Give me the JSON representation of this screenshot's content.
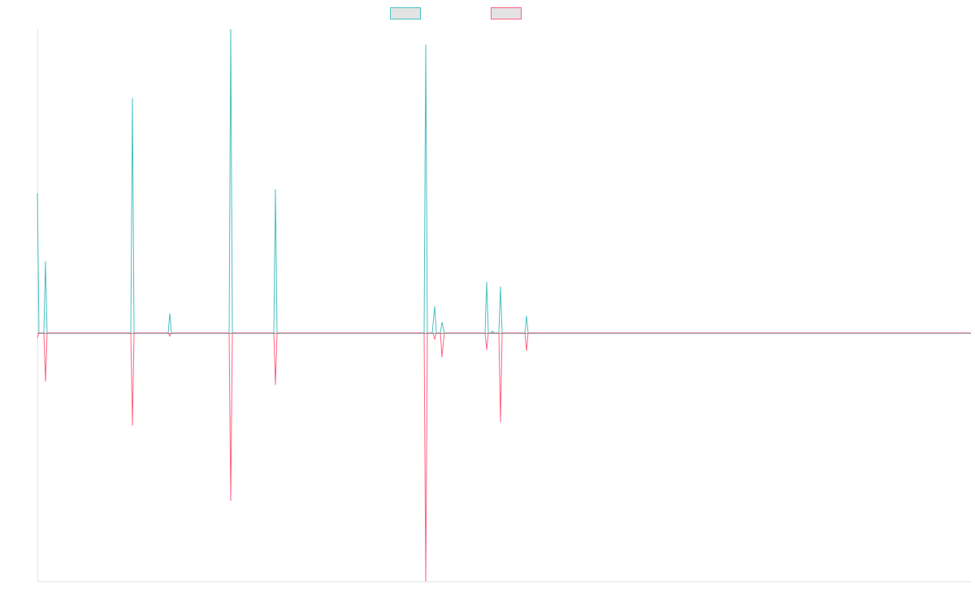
{
  "chart_data": {
    "type": "line",
    "title": "",
    "xlabel": "",
    "ylabel": "",
    "xlim": [
      0,
      1149
    ],
    "ylim": [
      -306,
      374
    ],
    "grid": false,
    "legend_placement": "top-center",
    "series": [
      {
        "name": "",
        "color": "#4bc0c0",
        "points": [
          [
            0,
            172
          ],
          [
            2,
            0
          ],
          [
            8,
            0
          ],
          [
            10,
            88
          ],
          [
            12,
            0
          ],
          [
            115,
            0
          ],
          [
            117,
            289
          ],
          [
            119,
            0
          ],
          [
            161,
            0
          ],
          [
            163,
            24
          ],
          [
            165,
            0
          ],
          [
            236,
            0
          ],
          [
            238,
            374
          ],
          [
            240,
            0
          ],
          [
            291,
            0
          ],
          [
            293,
            177
          ],
          [
            295,
            0
          ],
          [
            476,
            0
          ],
          [
            478,
            355
          ],
          [
            480,
            0
          ],
          [
            486,
            0
          ],
          [
            489,
            33
          ],
          [
            491,
            0
          ],
          [
            496,
            0
          ],
          [
            498,
            13
          ],
          [
            501,
            0
          ],
          [
            551,
            0
          ],
          [
            553,
            63
          ],
          [
            555,
            0
          ],
          [
            558,
            0
          ],
          [
            560,
            2
          ],
          [
            562,
            0
          ],
          [
            568,
            0
          ],
          [
            570,
            57
          ],
          [
            572,
            0
          ],
          [
            600,
            0
          ],
          [
            602,
            21
          ],
          [
            604,
            0
          ],
          [
            1149,
            0
          ]
        ]
      },
      {
        "name": "",
        "color": "#ff6384",
        "points": [
          [
            0,
            -6
          ],
          [
            2,
            0
          ],
          [
            8,
            0
          ],
          [
            10,
            -60
          ],
          [
            12,
            0
          ],
          [
            115,
            0
          ],
          [
            117,
            -114
          ],
          [
            119,
            0
          ],
          [
            161,
            0
          ],
          [
            163,
            -4
          ],
          [
            165,
            0
          ],
          [
            236,
            0
          ],
          [
            238,
            -207
          ],
          [
            240,
            0
          ],
          [
            291,
            0
          ],
          [
            293,
            -64
          ],
          [
            295,
            0
          ],
          [
            476,
            0
          ],
          [
            478,
            -306
          ],
          [
            480,
            0
          ],
          [
            487,
            0
          ],
          [
            489,
            -8
          ],
          [
            491,
            0
          ],
          [
            496,
            0
          ],
          [
            498,
            -30
          ],
          [
            500,
            -8
          ],
          [
            501,
            0
          ],
          [
            551,
            0
          ],
          [
            553,
            -21
          ],
          [
            555,
            0
          ],
          [
            568,
            0
          ],
          [
            570,
            -110
          ],
          [
            572,
            0
          ],
          [
            600,
            0
          ],
          [
            602,
            -22
          ],
          [
            604,
            0
          ],
          [
            1149,
            0
          ]
        ]
      }
    ]
  }
}
